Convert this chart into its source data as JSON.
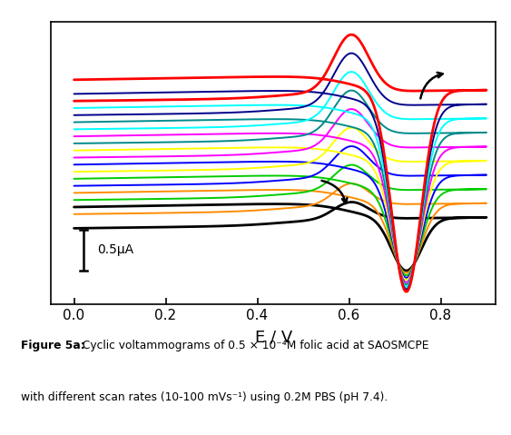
{
  "xlabel": "E / V",
  "xlim": [
    -0.05,
    0.92
  ],
  "xticks": [
    0.0,
    0.2,
    0.4,
    0.6,
    0.8
  ],
  "background_color": "#ffffff",
  "scale_bar_label": "0.5μA",
  "cv_colors": [
    "#000000",
    "#FF8C00",
    "#00CC00",
    "#0000FF",
    "#FFFF00",
    "#FF00FF",
    "#008B8B",
    "#00FFFF",
    "#00008B",
    "#FF0000"
  ],
  "n_scans": 10,
  "caption_bold": "Figure 5a:",
  "caption_line1": " Cyclic voltammograms of 0.5 × 10⁻⁴M folic acid at SAOSMCPE",
  "caption_line2": "with different scan rates (10-100 mVs⁻¹) using 0.2M PBS (pH 7.4).",
  "fig_width": 5.63,
  "fig_height": 4.79,
  "fig_dpi": 100
}
